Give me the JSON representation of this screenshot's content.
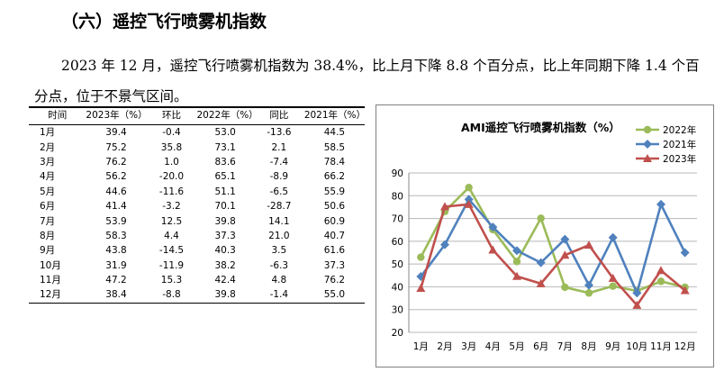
{
  "heading": "（六）遥控飞行喷雾机指数",
  "paragraph": "2023 年 12 月，遥控飞行喷雾机指数为 38.4%，比上月下降 8.8 个百分点，比上年同期下降 1.4 个百分点，位于不景气区间。",
  "table": {
    "headers": [
      "时间",
      "2023年（%）",
      "环比",
      "2022年（%）",
      "同比",
      "2021年（%）"
    ],
    "rows": [
      [
        "1月",
        "39.4",
        "-0.4",
        "53.0",
        "-13.6",
        "44.5"
      ],
      [
        "2月",
        "75.2",
        "35.8",
        "73.1",
        "2.1",
        "58.5"
      ],
      [
        "3月",
        "76.2",
        "1.0",
        "83.6",
        "-7.4",
        "78.4"
      ],
      [
        "4月",
        "56.2",
        "-20.0",
        "65.1",
        "-8.9",
        "66.2"
      ],
      [
        "5月",
        "44.6",
        "-11.6",
        "51.1",
        "-6.5",
        "55.9"
      ],
      [
        "6月",
        "41.4",
        "-3.2",
        "70.1",
        "-28.7",
        "50.6"
      ],
      [
        "7月",
        "53.9",
        "12.5",
        "39.8",
        "14.1",
        "60.9"
      ],
      [
        "8月",
        "58.3",
        "4.4",
        "37.3",
        "21.0",
        "40.7"
      ],
      [
        "9月",
        "43.8",
        "-14.5",
        "40.3",
        "3.5",
        "61.6"
      ],
      [
        "10月",
        "31.9",
        "-11.9",
        "38.2",
        "-6.3",
        "37.3"
      ],
      [
        "11月",
        "47.2",
        "15.3",
        "42.4",
        "4.8",
        "76.2"
      ],
      [
        "12月",
        "38.4",
        "-8.8",
        "39.8",
        "-1.4",
        "55.0"
      ]
    ]
  },
  "chart_data": {
    "type": "line",
    "title": "AMI遥控飞行喷雾机指数（%）",
    "categories": [
      "1月",
      "2月",
      "3月",
      "4月",
      "5月",
      "6月",
      "7月",
      "8月",
      "9月",
      "10月",
      "11月",
      "12月"
    ],
    "ylim": [
      20,
      90
    ],
    "yticks": [
      20,
      30,
      40,
      50,
      60,
      70,
      80,
      90
    ],
    "grid": true,
    "legend": "top-right",
    "series": [
      {
        "name": "2022年",
        "color": "#9BBB59",
        "marker": "circle",
        "values": [
          53.0,
          73.1,
          83.6,
          65.1,
          51.1,
          70.1,
          39.8,
          37.3,
          40.3,
          38.2,
          42.4,
          39.8
        ]
      },
      {
        "name": "2021年",
        "color": "#4F81BD",
        "marker": "diamond",
        "values": [
          44.5,
          58.5,
          78.4,
          66.2,
          55.9,
          50.6,
          60.9,
          40.7,
          61.6,
          37.3,
          76.2,
          55.0
        ]
      },
      {
        "name": "2023年",
        "color": "#C0504D",
        "marker": "triangle",
        "values": [
          39.4,
          75.2,
          76.2,
          56.2,
          44.6,
          41.4,
          53.9,
          58.3,
          43.8,
          31.9,
          47.2,
          38.4
        ]
      }
    ]
  }
}
